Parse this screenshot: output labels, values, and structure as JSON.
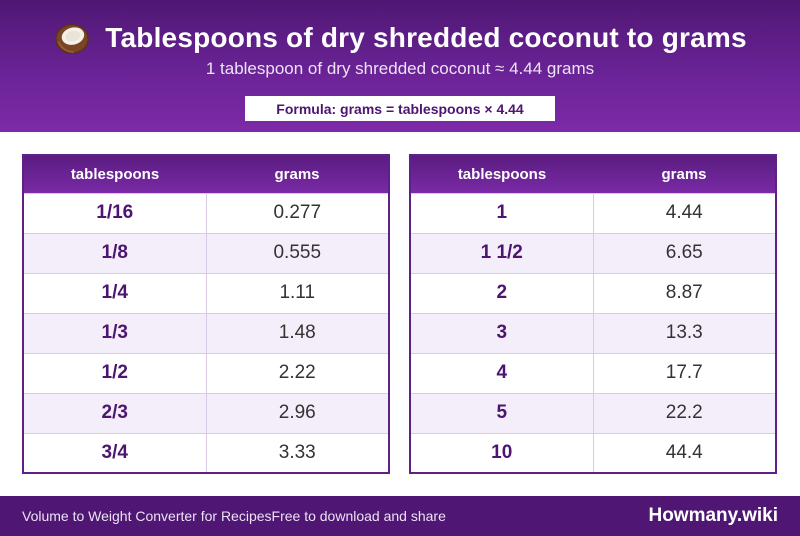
{
  "header": {
    "title": "Tablespoons of dry shredded coconut to grams",
    "subtitle": "1 tablespoon of dry shredded coconut ≈ 4.44 grams",
    "formula": "Formula: grams = tablespoons × 4.44",
    "icon": "coconut-icon"
  },
  "tables": {
    "left": {
      "col_tablespoons": "tablespoons",
      "col_grams": "grams",
      "rows": [
        {
          "tablespoons": "1/16",
          "grams": "0.277"
        },
        {
          "tablespoons": "1/8",
          "grams": "0.555"
        },
        {
          "tablespoons": "1/4",
          "grams": "1.11"
        },
        {
          "tablespoons": "1/3",
          "grams": "1.48"
        },
        {
          "tablespoons": "1/2",
          "grams": "2.22"
        },
        {
          "tablespoons": "2/3",
          "grams": "2.96"
        },
        {
          "tablespoons": "3/4",
          "grams": "3.33"
        }
      ]
    },
    "right": {
      "col_tablespoons": "tablespoons",
      "col_grams": "grams",
      "rows": [
        {
          "tablespoons": "1",
          "grams": "4.44"
        },
        {
          "tablespoons": "1 1/2",
          "grams": "6.65"
        },
        {
          "tablespoons": "2",
          "grams": "8.87"
        },
        {
          "tablespoons": "3",
          "grams": "13.3"
        },
        {
          "tablespoons": "4",
          "grams": "17.7"
        },
        {
          "tablespoons": "5",
          "grams": "22.2"
        },
        {
          "tablespoons": "10",
          "grams": "44.4"
        }
      ]
    }
  },
  "footer": {
    "left_text": "Volume to Weight Converter for Recipes",
    "middle_text": "Free to download and share",
    "brand": "Howmany.wiki"
  },
  "colors": {
    "brand_purple": "#5a1c80",
    "accent_text": "#4d1570",
    "row_alt": "#f4eefa"
  }
}
